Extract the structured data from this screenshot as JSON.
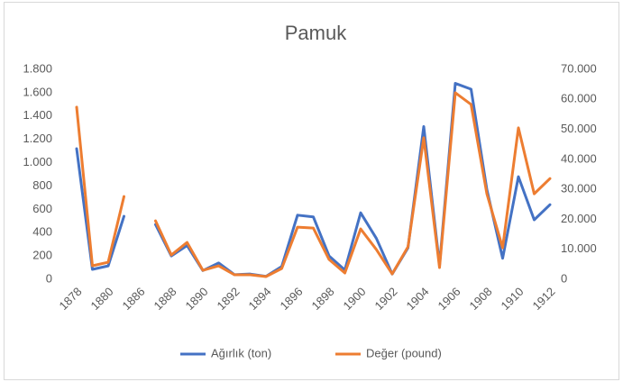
{
  "chart_data": {
    "type": "line",
    "title": "Pamuk",
    "categories": [
      "1878",
      null,
      "1880",
      null,
      "1886",
      null,
      "1888",
      null,
      "1890",
      null,
      "1892",
      null,
      "1894",
      null,
      "1896",
      null,
      "1898",
      null,
      "1900",
      null,
      "1902",
      null,
      "1904",
      null,
      "1906",
      null,
      "1908",
      null,
      "1910",
      null,
      "1912"
    ],
    "series": [
      {
        "name": "Ağırlık (ton)",
        "color": "#4472c4",
        "values": [
          1120,
          85,
          115,
          540,
          null,
          470,
          200,
          290,
          75,
          140,
          40,
          45,
          25,
          110,
          550,
          535,
          200,
          80,
          570,
          350,
          45,
          270,
          1310,
          120,
          1680,
          1630,
          770,
          180,
          880,
          510,
          640
        ]
      },
      {
        "name": "Değer (pound)",
        "color": "#ed7d31",
        "axis": "y2",
        "values": [
          57400,
          4500,
          5700,
          27600,
          null,
          19500,
          8100,
          12300,
          3000,
          4500,
          1500,
          1500,
          900,
          3600,
          17400,
          17100,
          6600,
          2100,
          16800,
          9900,
          1800,
          10800,
          47200,
          3900,
          62200,
          58300,
          28500,
          10500,
          50500,
          28500,
          33600
        ]
      }
    ],
    "ylim": [
      0,
      1800
    ],
    "yticks": [
      0,
      {
        "value": 200,
        "label": "200"
      },
      400,
      600,
      800,
      {
        "value": 1000,
        "label": "1.000"
      },
      {
        "value": 1200,
        "label": "1.200"
      },
      {
        "value": 1400,
        "label": "1.400"
      },
      {
        "value": 1600,
        "label": "1.600"
      },
      {
        "value": 1800,
        "label": "1.800"
      }
    ],
    "y2lim": [
      0,
      70000
    ],
    "y2ticks": [
      0,
      {
        "value": 10000,
        "label": "10.000"
      },
      {
        "value": 20000,
        "label": "20.000"
      },
      {
        "value": 30000,
        "label": "30.000"
      },
      {
        "value": 40000,
        "label": "40.000"
      },
      {
        "value": 50000,
        "label": "50.000"
      },
      {
        "value": 60000,
        "label": "60.000"
      },
      {
        "value": 70000,
        "label": "70.000"
      }
    ],
    "legend": "bottom"
  }
}
